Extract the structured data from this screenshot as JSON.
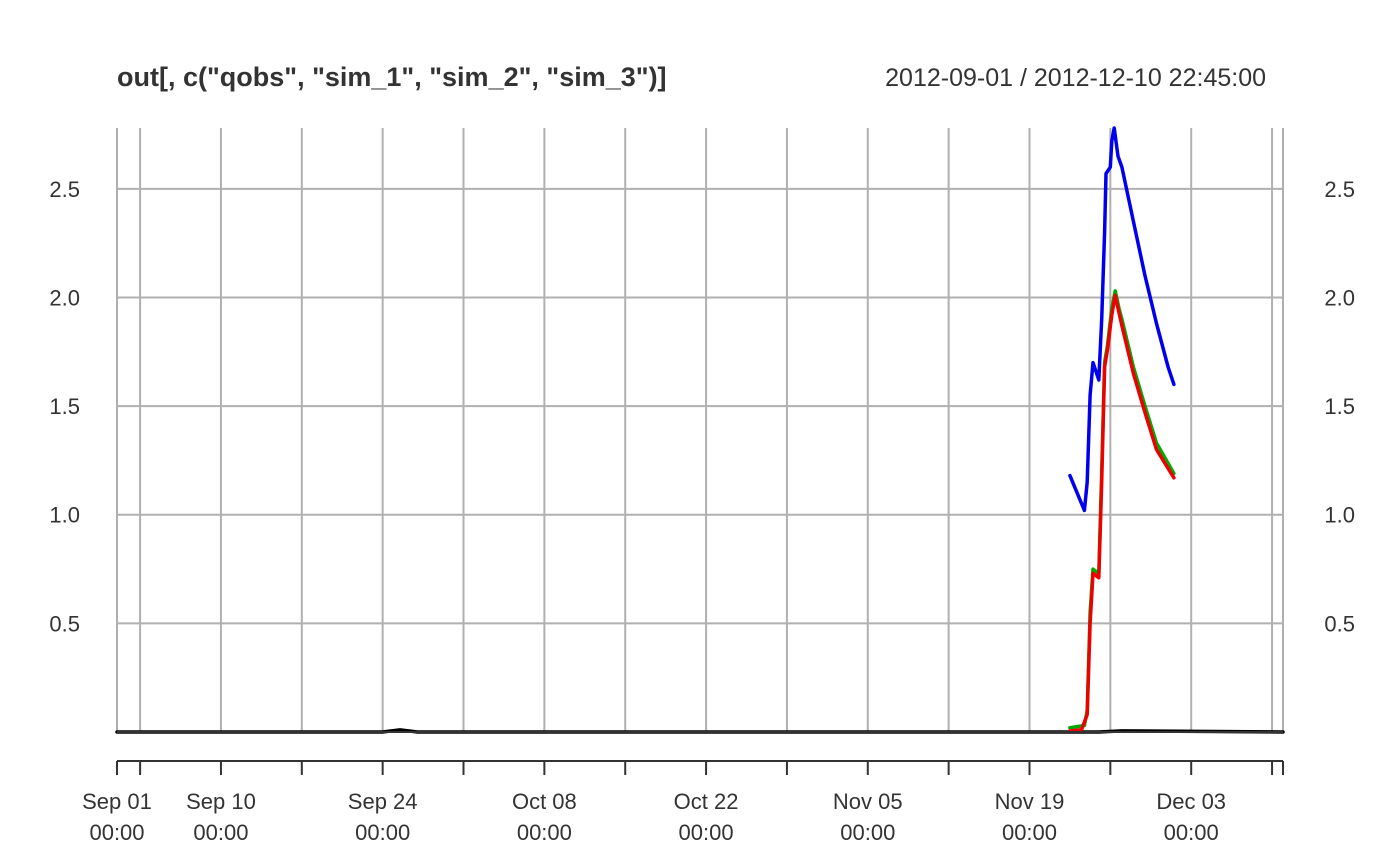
{
  "chart_data": {
    "type": "line",
    "title": "out[, c(\"qobs\", \"sim_1\", \"sim_2\", \"sim_3\")]",
    "date_range_label": "2012-09-01 / 2012-12-10 22:45:00",
    "xlim": [
      "2012-09-01 00:00",
      "2012-12-10 22:45"
    ],
    "ylim": [
      0,
      2.78
    ],
    "y_ticks": [
      0.5,
      1.0,
      1.5,
      2.0,
      2.5
    ],
    "y_tick_labels": [
      "0.5",
      "1.0",
      "1.5",
      "2.0",
      "2.5"
    ],
    "y_axis_sides": [
      "left",
      "right"
    ],
    "x_tick_labels": [
      {
        "date": "2012-09-01 00:00",
        "line1": "Sep 01",
        "line2": "00:00"
      },
      {
        "date": "2012-09-10 00:00",
        "line1": "Sep 10",
        "line2": "00:00"
      },
      {
        "date": "2012-09-24 00:00",
        "line1": "Sep 24",
        "line2": "00:00"
      },
      {
        "date": "2012-10-08 00:00",
        "line1": "Oct 08",
        "line2": "00:00"
      },
      {
        "date": "2012-10-22 00:00",
        "line1": "Oct 22",
        "line2": "00:00"
      },
      {
        "date": "2012-11-05 00:00",
        "line1": "Nov 05",
        "line2": "00:00"
      },
      {
        "date": "2012-11-19 00:00",
        "line1": "Nov 19",
        "line2": "00:00"
      },
      {
        "date": "2012-12-03 00:00",
        "line1": "Dec 03",
        "line2": "00:00"
      }
    ],
    "x_grid_dates": [
      "2012-09-03",
      "2012-09-10",
      "2012-09-17",
      "2012-09-24",
      "2012-10-01",
      "2012-10-08",
      "2012-10-15",
      "2012-10-22",
      "2012-10-29",
      "2012-11-05",
      "2012-11-12",
      "2012-11-19",
      "2012-11-26",
      "2012-12-03",
      "2012-12-10"
    ],
    "x_minor_tick_dates": [
      "2012-09-03",
      "2012-09-17",
      "2012-10-01",
      "2012-10-15",
      "2012-10-29",
      "2012-11-12",
      "2012-11-26",
      "2012-12-10"
    ],
    "grid": true,
    "legend": "none",
    "series": [
      {
        "color": "#000000",
        "points": [
          [
            "2012-09-01 00:00",
            0.0
          ],
          [
            "2012-09-24 00:00",
            0.0
          ],
          [
            "2012-09-25 12:00",
            0.01
          ],
          [
            "2012-09-27 00:00",
            0.0
          ],
          [
            "2012-11-23 00:00",
            0.0
          ],
          [
            "2012-11-25 00:00",
            0.0
          ],
          [
            "2012-11-27 00:00",
            0.005
          ],
          [
            "2012-12-10 22:45",
            0.0
          ]
        ]
      },
      {
        "color": "#0000ee",
        "points": [
          [
            "2012-11-22 12:00",
            1.18
          ],
          [
            "2012-11-23 18:00",
            1.02
          ],
          [
            "2012-11-24 00:00",
            1.15
          ],
          [
            "2012-11-24 06:00",
            1.55
          ],
          [
            "2012-11-24 12:00",
            1.7
          ],
          [
            "2012-11-25 00:00",
            1.62
          ],
          [
            "2012-11-25 06:00",
            1.9
          ],
          [
            "2012-11-25 12:00",
            2.3
          ],
          [
            "2012-11-25 15:00",
            2.57
          ],
          [
            "2012-11-26 00:00",
            2.6
          ],
          [
            "2012-11-26 03:00",
            2.72
          ],
          [
            "2012-11-26 08:00",
            2.78
          ],
          [
            "2012-11-26 16:00",
            2.65
          ],
          [
            "2012-11-27 00:00",
            2.6
          ],
          [
            "2012-11-28 00:00",
            2.35
          ],
          [
            "2012-11-29 00:00",
            2.1
          ],
          [
            "2012-11-30 00:00",
            1.88
          ],
          [
            "2012-12-01 00:00",
            1.68
          ],
          [
            "2012-12-01 12:00",
            1.6
          ]
        ]
      },
      {
        "color": "#00aa00",
        "points": [
          [
            "2012-11-22 12:00",
            0.02
          ],
          [
            "2012-11-23 18:00",
            0.03
          ],
          [
            "2012-11-24 00:00",
            0.1
          ],
          [
            "2012-11-24 06:00",
            0.55
          ],
          [
            "2012-11-24 12:00",
            0.75
          ],
          [
            "2012-11-25 00:00",
            0.73
          ],
          [
            "2012-11-25 06:00",
            1.2
          ],
          [
            "2012-11-25 12:00",
            1.7
          ],
          [
            "2012-11-25 18:00",
            1.78
          ],
          [
            "2012-11-26 03:00",
            1.95
          ],
          [
            "2012-11-26 10:00",
            2.03
          ],
          [
            "2012-11-26 18:00",
            1.95
          ],
          [
            "2012-11-27 00:00",
            1.9
          ],
          [
            "2012-11-28 00:00",
            1.68
          ],
          [
            "2012-11-29 00:00",
            1.5
          ],
          [
            "2012-11-30 00:00",
            1.33
          ],
          [
            "2012-12-01 12:00",
            1.19
          ]
        ]
      },
      {
        "color": "#ee0000",
        "points": [
          [
            "2012-11-22 12:00",
            0.005
          ],
          [
            "2012-11-23 12:00",
            0.01
          ],
          [
            "2012-11-24 00:00",
            0.08
          ],
          [
            "2012-11-24 06:00",
            0.5
          ],
          [
            "2012-11-24 12:00",
            0.73
          ],
          [
            "2012-11-25 00:00",
            0.71
          ],
          [
            "2012-11-25 06:00",
            1.15
          ],
          [
            "2012-11-25 12:00",
            1.68
          ],
          [
            "2012-11-25 18:00",
            1.76
          ],
          [
            "2012-11-26 03:00",
            1.92
          ],
          [
            "2012-11-26 10:00",
            2.01
          ],
          [
            "2012-11-26 18:00",
            1.93
          ],
          [
            "2012-11-27 00:00",
            1.87
          ],
          [
            "2012-11-28 00:00",
            1.65
          ],
          [
            "2012-11-29 00:00",
            1.47
          ],
          [
            "2012-11-30 00:00",
            1.3
          ],
          [
            "2012-12-01 12:00",
            1.17
          ]
        ]
      }
    ]
  }
}
